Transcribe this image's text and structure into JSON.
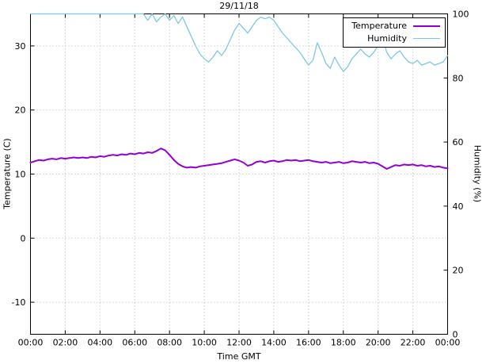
{
  "chart_data": {
    "type": "line",
    "title": "29/11/18",
    "xlabel": "Time GMT",
    "ylabel_left": "Temperature (C)",
    "ylabel_right": "Humidity (%)",
    "grid": true,
    "legend_position": "top-right",
    "x_range_hours": [
      0,
      24
    ],
    "x_tick_step_hours": 2,
    "x_ticks": [
      "00:00",
      "02:00",
      "04:00",
      "06:00",
      "08:00",
      "10:00",
      "12:00",
      "14:00",
      "16:00",
      "18:00",
      "20:00",
      "22:00",
      "00:00"
    ],
    "y_left_range": [
      -15,
      35
    ],
    "y_left_ticks": [
      -10,
      0,
      10,
      20,
      30
    ],
    "y_right_range": [
      0,
      100
    ],
    "y_right_ticks": [
      0,
      20,
      40,
      60,
      80,
      100
    ],
    "series": [
      {
        "name": "Temperature",
        "axis": "left",
        "color": "#9400d3",
        "line_width": 2,
        "x_start": 0,
        "x_step": 0.25,
        "values": [
          11.8,
          12.0,
          12.2,
          12.1,
          12.3,
          12.4,
          12.3,
          12.5,
          12.4,
          12.5,
          12.6,
          12.5,
          12.6,
          12.5,
          12.7,
          12.6,
          12.8,
          12.7,
          12.9,
          13.0,
          12.9,
          13.1,
          13.0,
          13.2,
          13.1,
          13.3,
          13.2,
          13.4,
          13.3,
          13.6,
          14.0,
          13.7,
          13.0,
          12.2,
          11.6,
          11.2,
          11.0,
          11.1,
          11.0,
          11.2,
          11.3,
          11.4,
          11.5,
          11.6,
          11.7,
          11.9,
          12.1,
          12.3,
          12.1,
          11.8,
          11.3,
          11.5,
          11.9,
          12.0,
          11.8,
          12.0,
          12.1,
          11.9,
          12.0,
          12.2,
          12.1,
          12.2,
          12.0,
          12.1,
          12.2,
          12.0,
          11.9,
          11.8,
          11.9,
          11.7,
          11.8,
          11.9,
          11.7,
          11.8,
          12.0,
          11.9,
          11.8,
          11.9,
          11.7,
          11.8,
          11.6,
          11.2,
          10.8,
          11.1,
          11.4,
          11.3,
          11.5,
          11.4,
          11.5,
          11.3,
          11.4,
          11.2,
          11.3,
          11.1,
          11.2,
          11.0,
          10.9
        ]
      },
      {
        "name": "Humidity",
        "axis": "right",
        "color": "#7bc8e2",
        "line_width": 1.3,
        "x_start": 0,
        "x_step": 0.25,
        "values": [
          100,
          100,
          100,
          100,
          100,
          100,
          100,
          100,
          100,
          100,
          100,
          100,
          100,
          100,
          100,
          100,
          100,
          100,
          100,
          100,
          100,
          100,
          100,
          100,
          100,
          100,
          100,
          98,
          100,
          97.5,
          99,
          100,
          98,
          99.5,
          97,
          99,
          96,
          93,
          90,
          87.5,
          86,
          85,
          86.5,
          88.5,
          87,
          89,
          92,
          95,
          97,
          95.5,
          94,
          96,
          98,
          99,
          98.5,
          99,
          98,
          96,
          94,
          92.5,
          91,
          89.5,
          88,
          86,
          84,
          85.5,
          91,
          88,
          84.5,
          83,
          86.5,
          84,
          82,
          83.5,
          86,
          87.5,
          89,
          87.5,
          86.5,
          88,
          90,
          92.5,
          88,
          86,
          87.5,
          88.5,
          86.5,
          85,
          84.5,
          85.5,
          84,
          84.5,
          85,
          84,
          84.5,
          85,
          87
        ]
      }
    ]
  }
}
